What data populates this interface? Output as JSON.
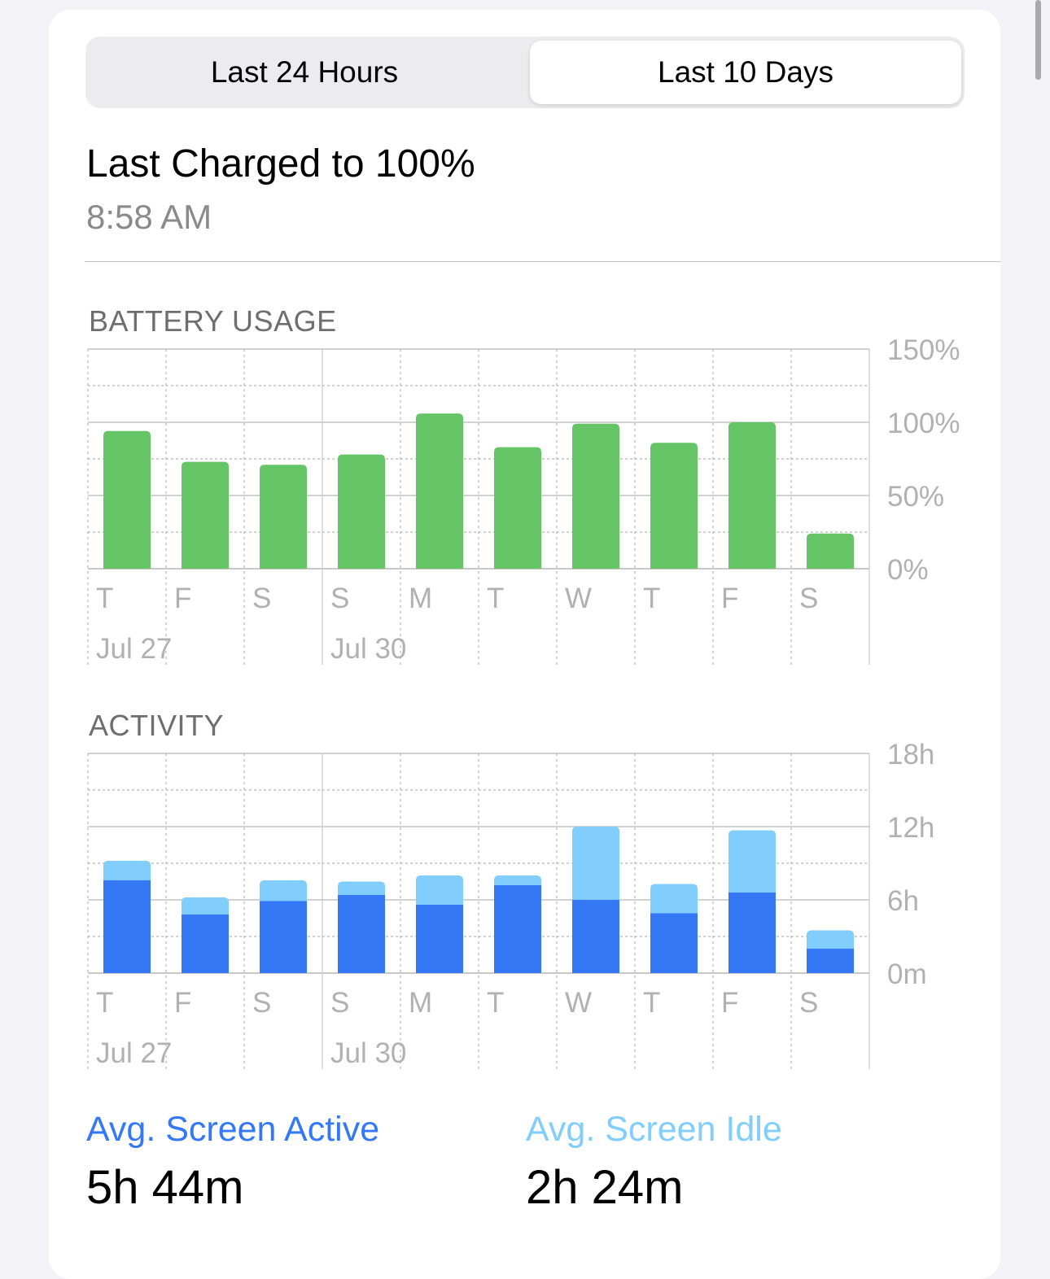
{
  "tabs": {
    "last24_label": "Last 24 Hours",
    "last10_label": "Last 10 Days",
    "selected": "Last 10 Days"
  },
  "charge": {
    "title": "Last Charged to 100%",
    "time": "8:58 AM"
  },
  "colors": {
    "battery_green": "#65c466",
    "active_blue": "#3478f6",
    "idle_light_blue": "#81cdfb",
    "label_gray": "#b0b0b5",
    "grid": "#b8b8bc"
  },
  "battery_chart": {
    "section_title": "BATTERY USAGE",
    "chart_data": {
      "type": "bar",
      "categories": [
        "T",
        "F",
        "S",
        "S",
        "M",
        "T",
        "W",
        "T",
        "F",
        "S"
      ],
      "values": [
        94,
        73,
        71,
        78,
        106,
        83,
        99,
        86,
        100,
        24
      ],
      "y_ticks": [
        "150%",
        "100%",
        "50%",
        "0%"
      ],
      "ylim": [
        0,
        150
      ],
      "date_labels": [
        {
          "category_index": 0,
          "text": "Jul 27"
        },
        {
          "category_index": 3,
          "text": "Jul 30"
        }
      ]
    }
  },
  "activity_chart": {
    "section_title": "ACTIVITY",
    "chart_data": {
      "type": "bar",
      "stacked": true,
      "categories": [
        "T",
        "F",
        "S",
        "S",
        "M",
        "T",
        "W",
        "T",
        "F",
        "S"
      ],
      "series": [
        {
          "values": [
            7.6,
            4.8,
            5.9,
            6.4,
            5.6,
            7.2,
            6.0,
            4.9,
            6.6,
            2.0
          ]
        },
        {
          "values": [
            1.6,
            1.4,
            1.7,
            1.1,
            2.4,
            0.8,
            6.0,
            2.4,
            5.1,
            1.5
          ]
        }
      ],
      "y_ticks": [
        "18h",
        "12h",
        "6h",
        "0m"
      ],
      "ylim": [
        0,
        18
      ],
      "date_labels": [
        {
          "category_index": 0,
          "text": "Jul 27"
        },
        {
          "category_index": 3,
          "text": "Jul 30"
        }
      ]
    }
  },
  "stats": {
    "active_label": "Avg. Screen Active",
    "active_value": "5h 44m",
    "idle_label": "Avg. Screen Idle",
    "idle_value": "2h 24m"
  }
}
